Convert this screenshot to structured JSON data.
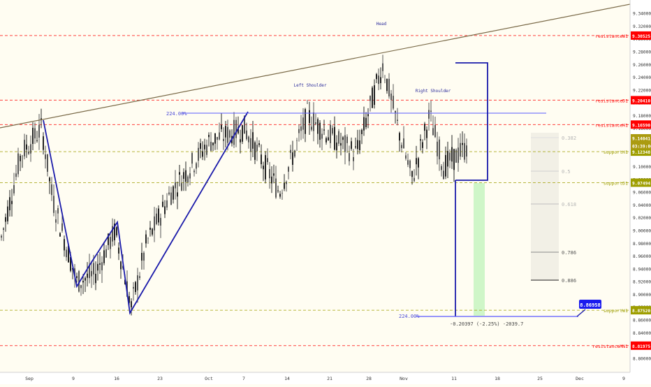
{
  "chart_data": {
    "type": "candlestick",
    "y_axis": {
      "ticks": [
        "9.34000",
        "9.32000",
        "9.30000",
        "9.28000",
        "9.26000",
        "9.24000",
        "9.22000",
        "9.20000",
        "9.18000",
        "9.16000",
        "9.14000",
        "9.12000",
        "9.10000",
        "9.08000",
        "9.06000",
        "9.04000",
        "9.02000",
        "9.00000",
        "8.98000",
        "8.96000",
        "8.94000",
        "8.92000",
        "8.90000",
        "8.88000",
        "8.86000",
        "8.84000",
        "8.82000",
        "8.80000"
      ],
      "range": [
        8.79,
        9.35
      ]
    },
    "x_axis": {
      "ticks": [
        "Sep",
        "9",
        "16",
        "23",
        "Oct",
        "7",
        "14",
        "21",
        "28",
        "Nov",
        "11",
        "18",
        "25",
        "Dec",
        "9"
      ]
    },
    "levels": [
      {
        "name": "resistanceW1",
        "price": "9.30525",
        "color": "#ff0000",
        "style": "dashed"
      },
      {
        "name": "resistanceD1",
        "price": "9.20410",
        "color": "#ff0000",
        "style": "dashed"
      },
      {
        "name": "resistanceH1",
        "price": "9.16590",
        "color": "#ff0000",
        "style": "dashed"
      },
      {
        "name": "supportH1",
        "price": "9.12348",
        "color": "#9e9e00",
        "style": "dashed"
      },
      {
        "name": "supportD1",
        "price": "9.07494",
        "color": "#9e9e00",
        "style": "dashed"
      },
      {
        "name": "supportW1",
        "price": "8.87520",
        "color": "#9e9e00",
        "style": "dashed"
      },
      {
        "name": "resistanceMN1",
        "price": "8.81975",
        "color": "#ff0000",
        "style": "dashed"
      }
    ],
    "price_labels": [
      {
        "text": "9.14041",
        "color": "#ab9b10"
      },
      {
        "text": "03:39:06",
        "color": "#ab9b10"
      }
    ],
    "annotations": {
      "head": "Head",
      "left_shoulder": "Left Shoulder",
      "right_shoulder": "Right Shoulder",
      "pct_top": "224.00%",
      "pct_bottom": "224.00%",
      "measure": "-0.20397 (-2.25%) -2039.7",
      "target": "8.86958"
    },
    "fib_levels": [
      "0.382",
      "0.5",
      "0.618",
      "0.786",
      "0.886"
    ]
  }
}
